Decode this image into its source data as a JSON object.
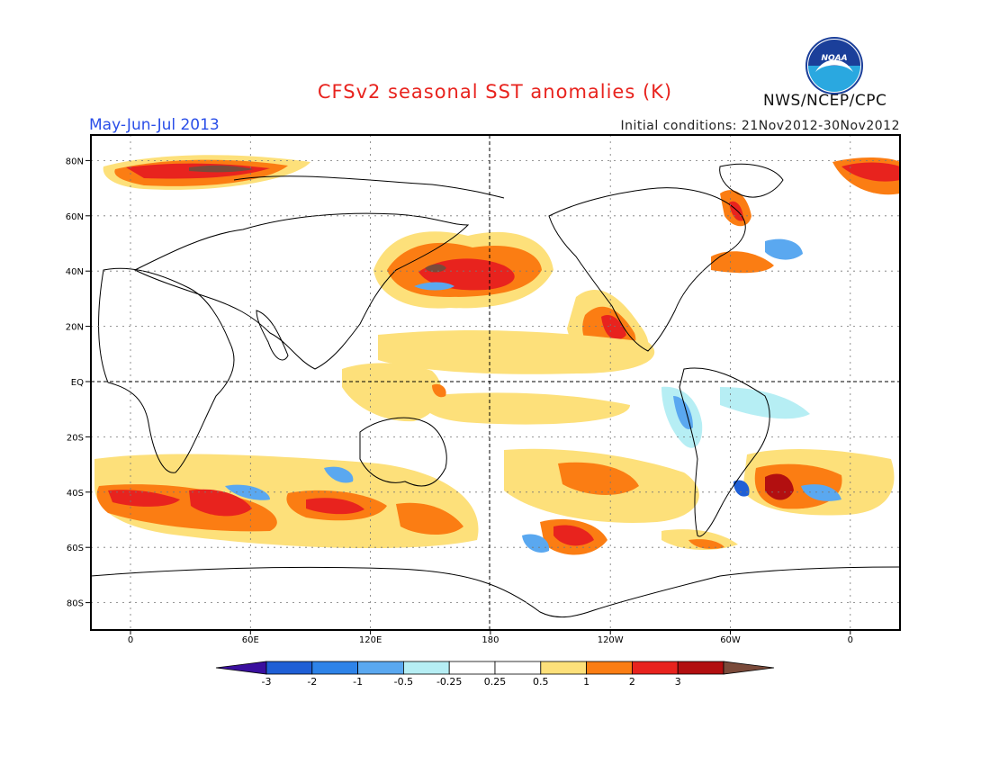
{
  "title": "CFSv2 seasonal SST anomalies (K)",
  "period": "May-Jun-Jul 2013",
  "org": "NWS/NCEP/CPC",
  "initial_conditions": "Initial conditions: 21Nov2012-30Nov2012",
  "logo_text": "NOAA",
  "map": {
    "lat_labels": [
      "80N",
      "60N",
      "40N",
      "20N",
      "EQ",
      "20S",
      "40S",
      "60S",
      "80S"
    ],
    "lon_labels": [
      "0",
      "60E",
      "120E",
      "180",
      "120W",
      "60W",
      "0"
    ]
  },
  "colorbar": {
    "colors": [
      "#3a0f9e",
      "#1f5fd6",
      "#2e83e8",
      "#5aa8f0",
      "#b6eef4",
      "#ffffff",
      "#ffffff",
      "#fde07a",
      "#fb7d13",
      "#e8231e",
      "#b20f10",
      "#7a4a3a"
    ],
    "tick_labels": [
      "-3",
      "-2",
      "-1",
      "-0.5",
      "-0.25",
      "0.25",
      "0.5",
      "1",
      "2",
      "3"
    ]
  },
  "palette": {
    "title": "#e8231e",
    "period": "#2a4ee8"
  }
}
